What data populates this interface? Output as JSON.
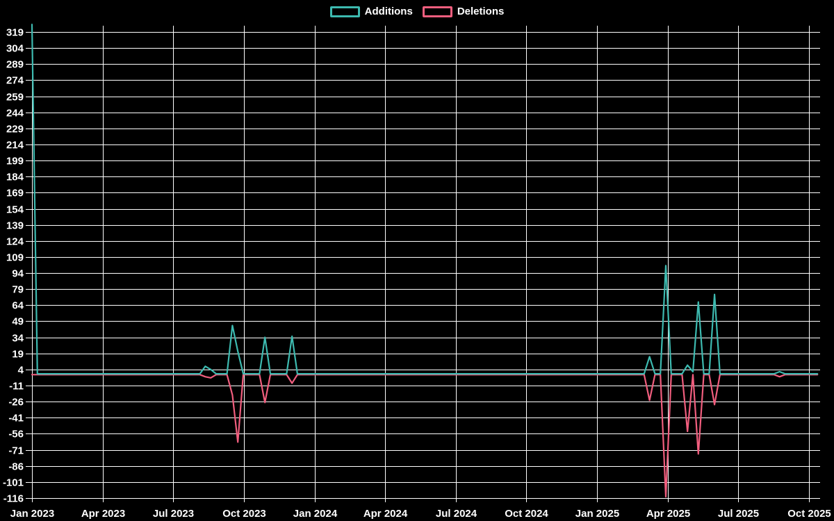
{
  "colors": {
    "background": "#000000",
    "grid": "#ffffff",
    "text": "#ffffff",
    "additions": "#3dbab0",
    "deletions": "#f15e7e"
  },
  "chart_data": {
    "type": "line",
    "title": "",
    "legend_position": "top-center",
    "grid": true,
    "ylim": [
      -116,
      326
    ],
    "y_tick_step": 15,
    "y_ticks": [
      "319",
      "304",
      "289",
      "274",
      "259",
      "244",
      "229",
      "214",
      "199",
      "184",
      "169",
      "154",
      "139",
      "124",
      "109",
      "94",
      "79",
      "64",
      "49",
      "34",
      "19",
      "4",
      "-11",
      "-26",
      "-41",
      "-56",
      "-71",
      "-86",
      "-101",
      "-116"
    ],
    "x_ticks": [
      "Jan 2023",
      "Apr 2023",
      "Jul 2023",
      "Oct 2023",
      "Jan 2024",
      "Apr 2024",
      "Jul 2024",
      "Oct 2024",
      "Jan 2025",
      "Apr 2025",
      "Jul 2025",
      "Oct 2025"
    ],
    "x_range": [
      "2023-01-01",
      "2025-10-01"
    ],
    "series": [
      {
        "name": "Additions",
        "color": "#3dbab0",
        "points": [
          [
            "2023-01-01",
            326
          ],
          [
            "2023-01-08",
            0
          ],
          [
            "2023-08-06",
            0
          ],
          [
            "2023-08-13",
            7
          ],
          [
            "2023-08-20",
            4
          ],
          [
            "2023-08-27",
            0
          ],
          [
            "2023-09-10",
            0
          ],
          [
            "2023-09-17",
            45
          ],
          [
            "2023-09-24",
            21
          ],
          [
            "2023-10-01",
            0
          ],
          [
            "2023-10-22",
            0
          ],
          [
            "2023-10-29",
            34
          ],
          [
            "2023-11-05",
            0
          ],
          [
            "2023-11-26",
            0
          ],
          [
            "2023-12-03",
            35
          ],
          [
            "2023-12-10",
            0
          ],
          [
            "2025-03-02",
            0
          ],
          [
            "2025-03-09",
            16
          ],
          [
            "2025-03-16",
            0
          ],
          [
            "2025-03-23",
            0
          ],
          [
            "2025-03-30",
            101
          ],
          [
            "2025-04-06",
            0
          ],
          [
            "2025-04-20",
            0
          ],
          [
            "2025-04-27",
            8
          ],
          [
            "2025-05-04",
            2
          ],
          [
            "2025-05-11",
            67
          ],
          [
            "2025-05-18",
            0
          ],
          [
            "2025-05-25",
            0
          ],
          [
            "2025-06-01",
            74
          ],
          [
            "2025-06-08",
            0
          ],
          [
            "2025-08-17",
            0
          ],
          [
            "2025-08-24",
            2
          ],
          [
            "2025-08-31",
            0
          ],
          [
            "2025-10-12",
            0
          ]
        ]
      },
      {
        "name": "Deletions",
        "color": "#f15e7e",
        "points": [
          [
            "2023-01-01",
            0
          ],
          [
            "2023-08-06",
            0
          ],
          [
            "2023-08-13",
            -2
          ],
          [
            "2023-08-20",
            -3
          ],
          [
            "2023-08-27",
            0
          ],
          [
            "2023-09-10",
            0
          ],
          [
            "2023-09-17",
            -19
          ],
          [
            "2023-09-24",
            -63
          ],
          [
            "2023-10-01",
            0
          ],
          [
            "2023-10-22",
            0
          ],
          [
            "2023-10-29",
            -26
          ],
          [
            "2023-11-05",
            0
          ],
          [
            "2023-11-26",
            0
          ],
          [
            "2023-12-03",
            -8
          ],
          [
            "2023-12-10",
            0
          ],
          [
            "2025-03-02",
            0
          ],
          [
            "2025-03-09",
            -24
          ],
          [
            "2025-03-16",
            0
          ],
          [
            "2025-03-23",
            0
          ],
          [
            "2025-03-30",
            -114
          ],
          [
            "2025-04-06",
            0
          ],
          [
            "2025-04-20",
            0
          ],
          [
            "2025-04-27",
            -53
          ],
          [
            "2025-05-04",
            0
          ],
          [
            "2025-05-11",
            -74
          ],
          [
            "2025-05-18",
            0
          ],
          [
            "2025-05-25",
            0
          ],
          [
            "2025-06-01",
            -28
          ],
          [
            "2025-06-08",
            0
          ],
          [
            "2025-08-17",
            0
          ],
          [
            "2025-08-24",
            -2
          ],
          [
            "2025-08-31",
            0
          ],
          [
            "2025-10-12",
            0
          ]
        ]
      }
    ]
  }
}
